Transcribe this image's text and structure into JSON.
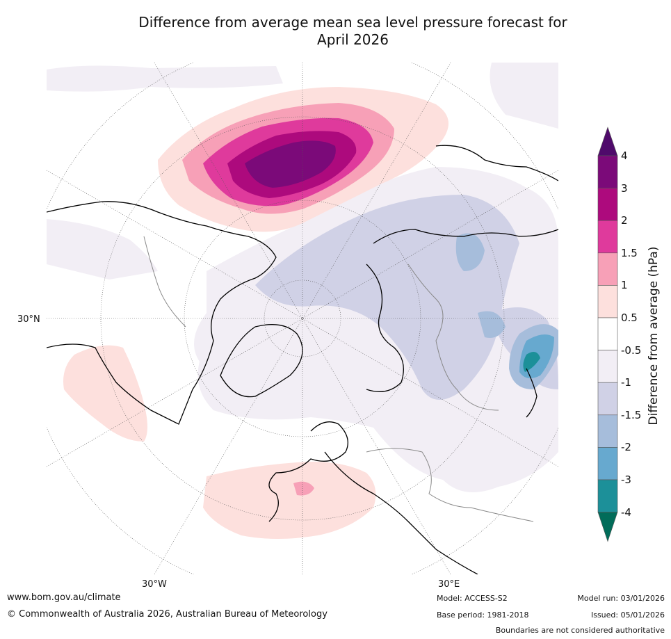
{
  "title_line1": "Difference from average mean sea level pressure forecast for",
  "title_line2": "April 2026",
  "map": {
    "lat_label_left": "30°N",
    "lon_label_1": "30°W",
    "lon_label_2": "30°E"
  },
  "colorbar": {
    "title": "Difference from average (hPa)",
    "levels": [
      "4",
      "3",
      "2",
      "1.5",
      "1",
      "0.5",
      "-0.5",
      "-1",
      "-1.5",
      "-2",
      "-3",
      "-4"
    ],
    "colors": {
      "above_4": "#4f0a6b",
      "3_to_4": "#7b0a79",
      "2_to_3": "#ad0a7d",
      "1_5_to_2": "#df3a9c",
      "1_to_1_5": "#f7a0b7",
      "0_5_to_1": "#fde0dd",
      "neutral": "#ffffff",
      "minus_0_5_to_1": "#f2eef5",
      "minus_1_to_1_5": "#d0d1e6",
      "minus_1_5_to_2": "#a6bddb",
      "minus_2_to_3": "#67a9cf",
      "minus_3_to_4": "#1c9099",
      "below_minus_4": "#016c59"
    }
  },
  "footer": {
    "website": "www.bom.gov.au/climate",
    "copyright": "© Commonwealth of Australia 2026, Australian Bureau of Meteorology",
    "model": "Model: ACCESS-S2",
    "base_period": "Base period: 1981-2018",
    "model_run": "Model run: 03/01/2026",
    "issued": "Issued: 05/01/2026",
    "disclaimer": "Boundaries are not considered authoritative"
  }
}
